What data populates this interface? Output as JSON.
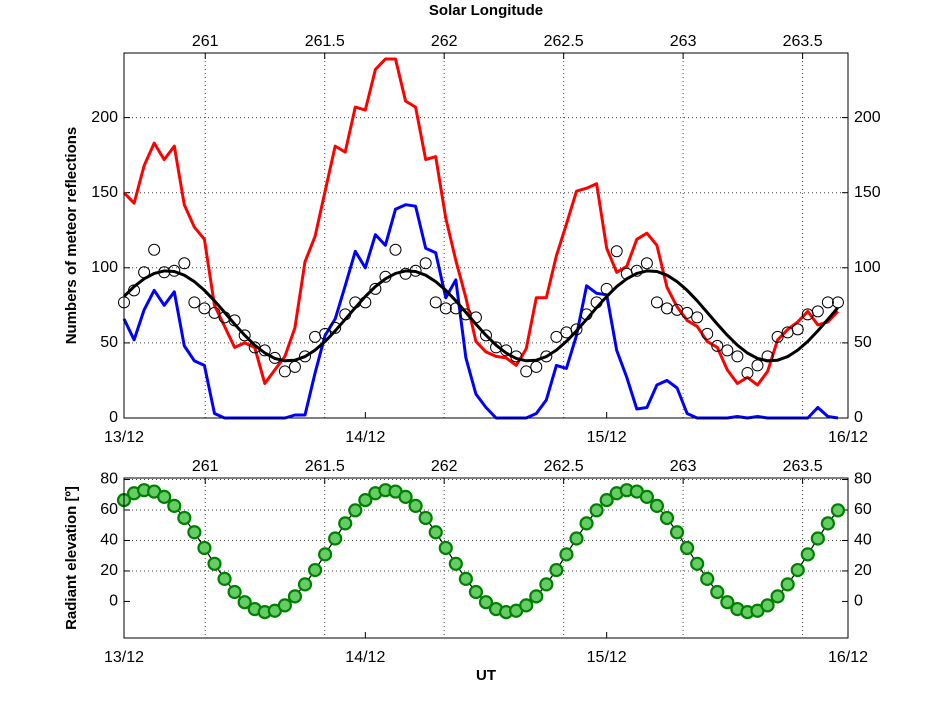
{
  "chart_data": [
    {
      "type": "line",
      "x2label": "Solar Longitude",
      "ylabel": "Numbers of meteor reflections",
      "x": [
        0,
        1,
        2,
        3,
        4,
        5,
        6,
        7,
        8,
        9,
        10,
        11,
        12,
        13,
        14,
        15,
        16,
        17,
        18,
        19,
        20,
        21,
        22,
        23,
        24,
        25,
        26,
        27,
        28,
        29,
        30,
        31,
        32,
        33,
        34,
        35,
        36,
        37,
        38,
        39,
        40,
        41,
        42,
        43,
        44,
        45,
        46,
        47,
        48,
        49,
        50,
        51,
        52,
        53,
        54,
        55,
        56,
        57,
        58,
        59,
        60,
        61,
        62,
        63,
        64,
        65,
        66,
        67,
        68,
        69,
        70,
        71
      ],
      "xlim": [
        0,
        72
      ],
      "xticks": [
        {
          "value": 0,
          "label": "13/12"
        },
        {
          "value": 24,
          "label": "14/12"
        },
        {
          "value": 48,
          "label": "15/12"
        },
        {
          "value": 72,
          "label": "16/12"
        }
      ],
      "x2lim": [
        260.66,
        263.69
      ],
      "x2ticks": [
        261,
        261.5,
        262,
        262.5,
        263,
        263.5
      ],
      "ylim": [
        0,
        243
      ],
      "yticks": [
        0,
        50,
        100,
        150,
        200
      ],
      "grid": true,
      "series": [
        {
          "color": "#ff0000",
          "style": "line",
          "values": [
            150,
            143,
            168,
            183,
            172,
            181,
            142,
            127,
            119,
            75,
            61,
            47,
            50,
            47,
            23,
            32,
            41,
            60,
            104,
            121,
            151,
            181,
            177,
            207,
            205,
            232,
            239,
            239,
            211,
            207,
            172,
            174,
            133,
            105,
            80,
            51,
            44,
            41,
            40,
            35,
            46,
            80,
            80,
            108,
            129,
            151,
            153,
            156,
            113,
            97,
            101,
            119,
            123,
            115,
            87,
            74,
            65,
            61,
            51,
            47,
            32,
            23,
            27,
            22,
            31,
            52,
            59,
            64,
            71,
            62,
            64,
            71
          ]
        },
        {
          "color": "#0000ff",
          "style": "line",
          "values": [
            66,
            52,
            72,
            85,
            75,
            84,
            48,
            38,
            35,
            3,
            0,
            0,
            0,
            0,
            0,
            0,
            0,
            2,
            2,
            30,
            55,
            66,
            88,
            111,
            100,
            122,
            115,
            139,
            142,
            141,
            113,
            110,
            80,
            92,
            40,
            16,
            7,
            0,
            0,
            0,
            0,
            3,
            12,
            35,
            33,
            55,
            88,
            83,
            82,
            45,
            27,
            6,
            7,
            22,
            25,
            20,
            3,
            0,
            0,
            0,
            0,
            1,
            0,
            1,
            0,
            0,
            0,
            0,
            0,
            7,
            1,
            0
          ]
        },
        {
          "color": "#000000",
          "style": "markers",
          "values": [
            77,
            85,
            97,
            112,
            97,
            98,
            103,
            77,
            73,
            70,
            67,
            65,
            55,
            47,
            45,
            40,
            31,
            34,
            41,
            54,
            56,
            60,
            69,
            77,
            77,
            86,
            94,
            112,
            96,
            98,
            103,
            77,
            73,
            73,
            69,
            67,
            55,
            47,
            45,
            41,
            31,
            34,
            41,
            54,
            57,
            59,
            69,
            77,
            86,
            111,
            96,
            98,
            103,
            77,
            73,
            72,
            70,
            67,
            56,
            48,
            45,
            41,
            30,
            35,
            41,
            54,
            57,
            59,
            69,
            71,
            77,
            77
          ]
        },
        {
          "color": "#000000",
          "style": "line",
          "values": [
            80.9,
            87.5,
            92.7,
            96.3,
            97.9,
            97.5,
            95.1,
            90.8,
            85.0,
            78.0,
            70.3,
            62.5,
            55.1,
            48.5,
            43.3,
            39.7,
            38.1,
            38.5,
            40.9,
            45.2,
            51.0,
            58.0,
            65.7,
            73.5,
            80.9,
            87.5,
            92.7,
            96.3,
            97.9,
            97.5,
            95.1,
            90.8,
            85.0,
            78.0,
            70.3,
            62.5,
            55.1,
            48.5,
            43.3,
            39.7,
            38.1,
            38.5,
            40.9,
            45.2,
            51.0,
            58.0,
            65.7,
            73.5,
            80.9,
            87.5,
            92.7,
            96.3,
            97.9,
            97.5,
            95.1,
            90.8,
            85.0,
            78.0,
            70.3,
            62.5,
            55.1,
            48.5,
            43.3,
            39.7,
            38.1,
            38.5,
            40.9,
            45.2,
            51.0,
            58.0,
            65.7,
            73.5
          ]
        }
      ]
    },
    {
      "type": "line",
      "xlabel": "UT",
      "ylabel": "Radiant elevation [º]",
      "x": [
        0,
        1,
        2,
        3,
        4,
        5,
        6,
        7,
        8,
        9,
        10,
        11,
        12,
        13,
        14,
        15,
        16,
        17,
        18,
        19,
        20,
        21,
        22,
        23,
        24,
        25,
        26,
        27,
        28,
        29,
        30,
        31,
        32,
        33,
        34,
        35,
        36,
        37,
        38,
        39,
        40,
        41,
        42,
        43,
        44,
        45,
        46,
        47,
        48,
        49,
        50,
        51,
        52,
        53,
        54,
        55,
        56,
        57,
        58,
        59,
        60,
        61,
        62,
        63,
        64,
        65,
        66,
        67,
        68,
        69,
        70,
        71
      ],
      "xlim": [
        0,
        72
      ],
      "xticks": [
        {
          "value": 0,
          "label": "13/12"
        },
        {
          "value": 24,
          "label": "14/12"
        },
        {
          "value": 48,
          "label": "15/12"
        },
        {
          "value": 72,
          "label": "16/12"
        }
      ],
      "x2lim": [
        260.66,
        263.69
      ],
      "x2ticks": [
        261,
        261.5,
        262,
        262.5,
        263,
        263.5
      ],
      "ylim": [
        -24,
        81
      ],
      "yticks": [
        0,
        20,
        40,
        60,
        80
      ],
      "grid": true,
      "series": [
        {
          "color": "#008000",
          "fill": "#66cc66",
          "style": "line-markers",
          "values": [
            66.5,
            71.0,
            73.0,
            72.1,
            68.6,
            62.7,
            54.8,
            45.4,
            35.1,
            24.7,
            14.8,
            6.2,
            -0.5,
            -5.0,
            -7.0,
            -6.1,
            -2.6,
            3.3,
            11.2,
            20.6,
            30.9,
            41.3,
            51.2,
            59.8,
            66.5,
            71.0,
            73.0,
            72.1,
            68.6,
            62.7,
            54.8,
            45.4,
            35.1,
            24.7,
            14.8,
            6.2,
            -0.5,
            -5.0,
            -7.0,
            -6.1,
            -2.6,
            3.3,
            11.2,
            20.6,
            30.9,
            41.3,
            51.2,
            59.8,
            66.5,
            71.0,
            73.0,
            72.1,
            68.6,
            62.7,
            54.8,
            45.4,
            35.1,
            24.7,
            14.8,
            6.2,
            -0.5,
            -5.0,
            -7.0,
            -6.1,
            -2.6,
            3.3,
            11.2,
            20.6,
            30.9,
            41.3,
            51.2,
            59.8
          ]
        }
      ]
    }
  ]
}
